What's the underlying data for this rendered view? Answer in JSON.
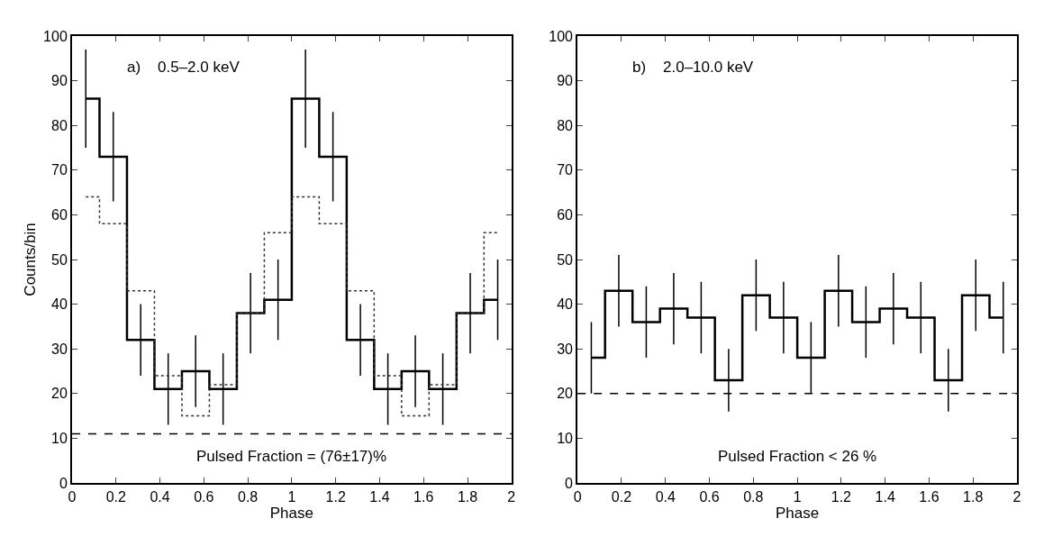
{
  "chart_data": [
    {
      "type": "step",
      "xlabel": "Phase",
      "ylabel": "Counts/bin",
      "annotations": [
        "a)    0.5–2.0 keV",
        "Pulsed Fraction = (76±17)%"
      ],
      "x": [
        0.0625,
        0.1875,
        0.3125,
        0.4375,
        0.5625,
        0.6875,
        0.8125,
        0.9375,
        1.0625,
        1.1875,
        1.3125,
        1.4375,
        1.5625,
        1.6875,
        1.8125,
        1.9375
      ],
      "series": [
        {
          "color": "#000000",
          "line_style": "solid",
          "values": [
            86,
            73,
            32,
            21,
            25,
            21,
            38,
            41,
            86,
            73,
            32,
            21,
            25,
            21,
            38,
            41
          ],
          "errors": [
            11,
            10,
            8,
            8,
            8,
            8,
            9,
            9,
            11,
            10,
            8,
            8,
            8,
            8,
            9,
            9
          ]
        },
        {
          "color": "#333333",
          "line_style": "dotted",
          "values": [
            64,
            58,
            43,
            24,
            15,
            22,
            38,
            56,
            64,
            58,
            43,
            24,
            15,
            22,
            38,
            56
          ]
        }
      ],
      "ref_lines": [
        {
          "axis": "y",
          "value": 11,
          "line_style": "dashed",
          "color": "#000000"
        }
      ],
      "xlim": [
        0,
        2
      ],
      "xticks": [
        0,
        0.2,
        0.4,
        0.6,
        0.8,
        1,
        1.2,
        1.4,
        1.6,
        1.8,
        2
      ],
      "ylim": [
        0,
        100
      ],
      "yticks": [
        0,
        10,
        20,
        30,
        40,
        50,
        60,
        70,
        80,
        90,
        100
      ]
    },
    {
      "type": "step",
      "xlabel": "Phase",
      "annotations": [
        "b)    2.0–10.0 keV",
        "Pulsed Fraction < 26 %"
      ],
      "x": [
        0.0625,
        0.1875,
        0.3125,
        0.4375,
        0.5625,
        0.6875,
        0.8125,
        0.9375,
        1.0625,
        1.1875,
        1.3125,
        1.4375,
        1.5625,
        1.6875,
        1.8125,
        1.9375
      ],
      "series": [
        {
          "color": "#000000",
          "line_style": "solid",
          "values": [
            28,
            43,
            36,
            39,
            37,
            23,
            42,
            37,
            28,
            43,
            36,
            39,
            37,
            23,
            42,
            37
          ],
          "errors": [
            8,
            8,
            8,
            8,
            8,
            7,
            8,
            8,
            8,
            8,
            8,
            8,
            8,
            7,
            8,
            8
          ]
        }
      ],
      "ref_lines": [
        {
          "axis": "y",
          "value": 20,
          "line_style": "dashed",
          "color": "#000000"
        }
      ],
      "xlim": [
        0,
        2
      ],
      "xticks": [
        0,
        0.2,
        0.4,
        0.6,
        0.8,
        1,
        1.2,
        1.4,
        1.6,
        1.8,
        2
      ],
      "ylim": [
        0,
        100
      ],
      "yticks": [
        0,
        10,
        20,
        30,
        40,
        50,
        60,
        70,
        80,
        90,
        100
      ]
    }
  ]
}
